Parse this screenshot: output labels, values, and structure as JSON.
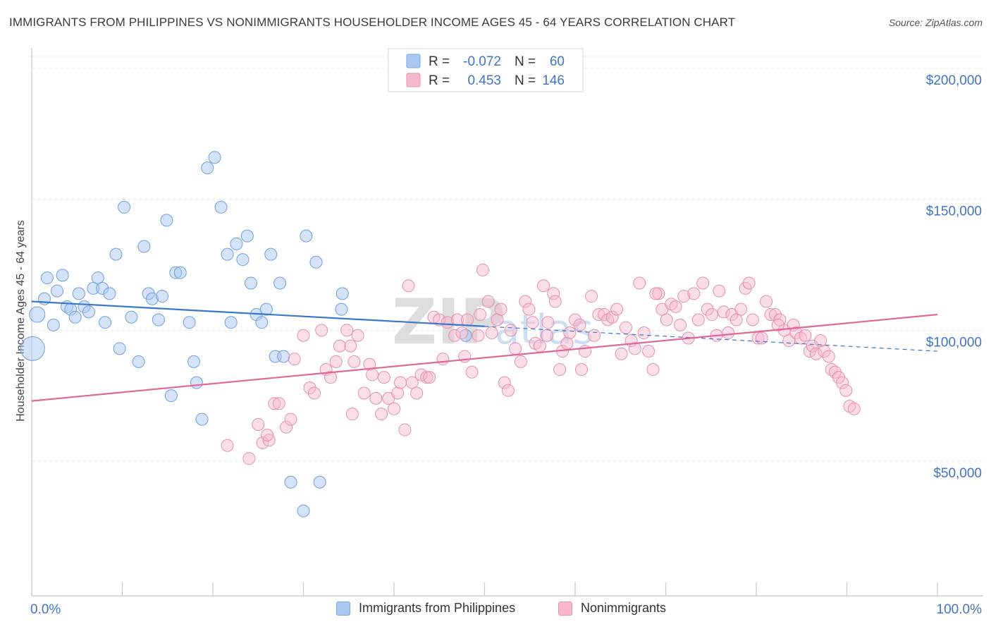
{
  "header": {
    "title": "IMMIGRANTS FROM PHILIPPINES VS NONIMMIGRANTS HOUSEHOLDER INCOME AGES 45 - 64 YEARS CORRELATION CHART",
    "source": "Source: ZipAtlas.com"
  },
  "watermark": {
    "zip": "ZIP",
    "atlas": "atlas"
  },
  "legend_top": [
    {
      "r_label": "R =",
      "r_value": "-0.072",
      "n_label": "N =",
      "n_value": "60",
      "color": "#a9c8f2",
      "border": "#7aa6e0"
    },
    {
      "r_label": "R =",
      "r_value": "0.453",
      "n_label": "N =",
      "n_value": "146",
      "color": "#f7b8cc",
      "border": "#e996b2"
    }
  ],
  "legend_bottom": [
    {
      "label": "Immigrants from Philippines",
      "color": "#a9c8f2",
      "border": "#7aa6e0"
    },
    {
      "label": "Nonimmigrants",
      "color": "#f7b8cc",
      "border": "#e996b2"
    }
  ],
  "chart_data": {
    "type": "scatter",
    "title": "IMMIGRANTS FROM PHILIPPINES VS NONIMMIGRANTS HOUSEHOLDER INCOME AGES 45 - 64 YEARS CORRELATION CHART",
    "xlabel": "",
    "ylabel": "Householder Income Ages 45 - 64 years",
    "xlim": [
      0,
      100
    ],
    "ylim": [
      5000,
      215000
    ],
    "x_tick_labels": [
      "0.0%",
      "100.0%"
    ],
    "y_ticks": [
      50000,
      100000,
      150000,
      200000
    ],
    "y_tick_labels": [
      "$50,000",
      "$100,000",
      "$150,000",
      "$200,000"
    ],
    "grid": true,
    "legend_placement": "top-center and bottom",
    "colors": {
      "blue_fill": "#a9c8f2",
      "blue_stroke": "#6f9fdc",
      "blue_line": "#3a78c9",
      "pink_fill": "#f7b8cc",
      "pink_stroke": "#e58fae",
      "pink_line": "#e0679a",
      "axis_text": "#3f74c6"
    },
    "series": [
      {
        "name": "Immigrants from Philippines",
        "r": -0.072,
        "n": 60,
        "trend": {
          "x0": 0,
          "y0": 111000,
          "x1": 100,
          "y1": 92000,
          "solid_until": 50
        },
        "points": [
          [
            0.1,
            93000,
            2
          ],
          [
            0.6,
            106000,
            1.3
          ],
          [
            1.4,
            112000,
            1
          ],
          [
            1.7,
            120000,
            1
          ],
          [
            2.4,
            102000,
            1
          ],
          [
            2.8,
            115000,
            1
          ],
          [
            3.4,
            121000,
            1
          ],
          [
            3.9,
            109000,
            1
          ],
          [
            4.3,
            108000,
            1
          ],
          [
            4.8,
            105000,
            1
          ],
          [
            5.2,
            114000,
            1
          ],
          [
            5.8,
            109000,
            1
          ],
          [
            6.3,
            107000,
            1
          ],
          [
            6.8,
            116000,
            1
          ],
          [
            7.3,
            120000,
            1
          ],
          [
            7.8,
            116000,
            1
          ],
          [
            8.1,
            103000,
            1
          ],
          [
            8.6,
            114000,
            1
          ],
          [
            9.3,
            129000,
            1
          ],
          [
            9.7,
            93000,
            1
          ],
          [
            10.2,
            147000,
            1
          ],
          [
            11.0,
            105000,
            1
          ],
          [
            11.8,
            88000,
            1
          ],
          [
            12.4,
            132000,
            1
          ],
          [
            12.9,
            114000,
            1
          ],
          [
            13.3,
            112000,
            1
          ],
          [
            14.0,
            104000,
            1
          ],
          [
            14.4,
            113000,
            1
          ],
          [
            14.9,
            142000,
            1
          ],
          [
            15.4,
            75000,
            1
          ],
          [
            15.9,
            122000,
            1
          ],
          [
            16.4,
            122000,
            1
          ],
          [
            17.4,
            103000,
            1
          ],
          [
            17.9,
            88000,
            1
          ],
          [
            18.2,
            80000,
            1
          ],
          [
            18.8,
            66000,
            1
          ],
          [
            19.4,
            162000,
            1
          ],
          [
            20.2,
            166000,
            1
          ],
          [
            20.9,
            147000,
            1
          ],
          [
            21.6,
            129000,
            1
          ],
          [
            22.0,
            103000,
            1
          ],
          [
            22.6,
            133000,
            1
          ],
          [
            23.3,
            127000,
            1
          ],
          [
            23.8,
            136000,
            1
          ],
          [
            24.2,
            118000,
            1
          ],
          [
            24.8,
            106000,
            1
          ],
          [
            25.4,
            103000,
            1
          ],
          [
            25.9,
            108000,
            1
          ],
          [
            26.4,
            129000,
            1
          ],
          [
            26.9,
            90000,
            1
          ],
          [
            27.4,
            118000,
            1
          ],
          [
            27.8,
            90000,
            1
          ],
          [
            28.6,
            42000,
            1
          ],
          [
            30.0,
            31000,
            1
          ],
          [
            30.3,
            136000,
            1
          ],
          [
            31.4,
            126000,
            1
          ],
          [
            31.8,
            42000,
            1
          ],
          [
            34.2,
            108000,
            1
          ],
          [
            34.3,
            114000,
            1
          ],
          [
            47.9,
            98000,
            1
          ]
        ]
      },
      {
        "name": "Nonimmigrants",
        "r": 0.453,
        "n": 146,
        "trend": {
          "x0": 0,
          "y0": 73000,
          "x1": 100,
          "y1": 106000
        },
        "points": [
          [
            21.6,
            56000,
            1
          ],
          [
            24.0,
            51000,
            1
          ],
          [
            25.0,
            64000,
            1
          ],
          [
            25.5,
            57000,
            1
          ],
          [
            26.2,
            58000,
            1
          ],
          [
            26.0,
            60000,
            1
          ],
          [
            26.8,
            72000,
            1
          ],
          [
            27.3,
            72000,
            1
          ],
          [
            28.1,
            63000,
            1
          ],
          [
            28.6,
            66000,
            1
          ],
          [
            29.0,
            89000,
            1
          ],
          [
            30.0,
            98000,
            1
          ],
          [
            30.7,
            78000,
            1
          ],
          [
            31.2,
            76000,
            1
          ],
          [
            32.0,
            100000,
            1
          ],
          [
            32.5,
            85000,
            1
          ],
          [
            33.0,
            82000,
            1
          ],
          [
            34.0,
            94000,
            1
          ],
          [
            34.8,
            100000,
            1
          ],
          [
            35.2,
            94000,
            1
          ],
          [
            35.4,
            68000,
            1
          ],
          [
            36.0,
            98000,
            1
          ],
          [
            36.7,
            76000,
            1
          ],
          [
            37.3,
            87000,
            1
          ],
          [
            37.6,
            83000,
            1
          ],
          [
            38.0,
            74000,
            1
          ],
          [
            38.6,
            68000,
            1
          ],
          [
            38.9,
            82000,
            1
          ],
          [
            39.4,
            74000,
            1
          ],
          [
            40.0,
            70000,
            1
          ],
          [
            40.4,
            76000,
            1
          ],
          [
            40.7,
            80000,
            1
          ],
          [
            41.2,
            62000,
            1
          ],
          [
            41.6,
            117000,
            1
          ],
          [
            42.0,
            80000,
            1
          ],
          [
            42.5,
            76000,
            1
          ],
          [
            43.0,
            83000,
            1
          ],
          [
            43.6,
            82000,
            1
          ],
          [
            43.9,
            82000,
            1
          ],
          [
            44.4,
            105000,
            1
          ],
          [
            45.0,
            104000,
            1
          ],
          [
            45.4,
            89000,
            1
          ],
          [
            45.9,
            103000,
            1
          ],
          [
            46.7,
            98000,
            1
          ],
          [
            47.0,
            104000,
            1
          ],
          [
            47.5,
            99000,
            1
          ],
          [
            47.8,
            90000,
            1
          ],
          [
            48.1,
            104000,
            1
          ],
          [
            48.6,
            84000,
            1
          ],
          [
            49.3,
            98000,
            1
          ],
          [
            49.8,
            123000,
            1
          ],
          [
            50.4,
            111000,
            1
          ],
          [
            50.8,
            99000,
            1
          ],
          [
            51.4,
            104000,
            1
          ],
          [
            51.8,
            108000,
            1
          ],
          [
            52.2,
            80000,
            1
          ],
          [
            52.6,
            77000,
            1
          ],
          [
            52.9,
            100000,
            1
          ],
          [
            53.4,
            93000,
            1
          ],
          [
            54.0,
            88000,
            1
          ],
          [
            54.5,
            111000,
            1
          ],
          [
            54.9,
            108000,
            1
          ],
          [
            55.3,
            103000,
            1
          ],
          [
            55.6,
            95000,
            1
          ],
          [
            56.1,
            94000,
            1
          ],
          [
            56.5,
            117000,
            1
          ],
          [
            57.0,
            103000,
            1
          ],
          [
            57.6,
            114000,
            1
          ],
          [
            57.8,
            111000,
            1
          ],
          [
            58.3,
            85000,
            1
          ],
          [
            58.6,
            92000,
            1
          ],
          [
            59.1,
            95000,
            1
          ],
          [
            59.4,
            99000,
            1
          ],
          [
            60.0,
            104000,
            1
          ],
          [
            60.5,
            102000,
            1
          ],
          [
            60.7,
            85000,
            1
          ],
          [
            61.1,
            92000,
            1
          ],
          [
            61.8,
            113000,
            1
          ],
          [
            62.1,
            98000,
            1
          ],
          [
            62.6,
            106000,
            1
          ],
          [
            63.2,
            106000,
            1
          ],
          [
            63.6,
            104000,
            1
          ],
          [
            64.1,
            105000,
            1
          ],
          [
            64.6,
            108000,
            1
          ],
          [
            65.1,
            91000,
            1
          ],
          [
            65.6,
            101000,
            1
          ],
          [
            66.2,
            96000,
            1
          ],
          [
            66.6,
            93000,
            1
          ],
          [
            67.1,
            118000,
            1
          ],
          [
            67.6,
            99000,
            1
          ],
          [
            68.1,
            92000,
            1
          ],
          [
            68.6,
            85000,
            1
          ],
          [
            69.2,
            114000,
            1
          ],
          [
            69.6,
            108000,
            1
          ],
          [
            70.1,
            104000,
            1
          ],
          [
            70.6,
            110000,
            1
          ],
          [
            71.1,
            109000,
            1
          ],
          [
            71.6,
            102000,
            1
          ],
          [
            72.0,
            113000,
            1
          ],
          [
            72.5,
            97000,
            1
          ],
          [
            73.1,
            114000,
            1
          ],
          [
            73.6,
            104000,
            1
          ],
          [
            74.1,
            118000,
            1
          ],
          [
            74.6,
            108000,
            1
          ],
          [
            75.1,
            106000,
            1
          ],
          [
            75.6,
            98000,
            1
          ],
          [
            75.9,
            115000,
            1
          ],
          [
            76.4,
            107000,
            1
          ],
          [
            76.9,
            99000,
            1
          ],
          [
            77.3,
            106000,
            1
          ],
          [
            77.8,
            104000,
            1
          ],
          [
            78.3,
            108000,
            1
          ],
          [
            78.8,
            116000,
            1
          ],
          [
            79.2,
            118000,
            1
          ],
          [
            79.6,
            104000,
            1
          ],
          [
            80.2,
            97000,
            1
          ],
          [
            80.6,
            97000,
            1
          ],
          [
            81.1,
            111000,
            1
          ],
          [
            81.6,
            106000,
            1
          ],
          [
            82.1,
            106000,
            1
          ],
          [
            82.6,
            104000,
            1
          ],
          [
            83.1,
            100000,
            1
          ],
          [
            83.6,
            96000,
            1
          ],
          [
            84.1,
            102000,
            1
          ],
          [
            84.4,
            99000,
            1
          ],
          [
            84.9,
            97000,
            1
          ],
          [
            85.4,
            98000,
            1
          ],
          [
            85.9,
            92000,
            1
          ],
          [
            86.2,
            94000,
            1
          ],
          [
            86.6,
            91000,
            1
          ],
          [
            87.1,
            96000,
            1
          ],
          [
            87.5,
            92000,
            1
          ],
          [
            88.0,
            90000,
            1
          ],
          [
            88.3,
            85000,
            1
          ],
          [
            88.7,
            84000,
            1
          ],
          [
            89.1,
            82000,
            1
          ],
          [
            89.5,
            80000,
            1
          ],
          [
            89.9,
            77000,
            1
          ],
          [
            90.3,
            71000,
            1
          ],
          [
            90.8,
            70000,
            1
          ],
          [
            82.4,
            102000,
            1
          ],
          [
            68.9,
            114000,
            1
          ],
          [
            56.9,
            98000,
            1
          ],
          [
            49.5,
            106000,
            1
          ],
          [
            33.6,
            88000,
            1
          ],
          [
            35.6,
            88000,
            1
          ]
        ]
      }
    ]
  }
}
